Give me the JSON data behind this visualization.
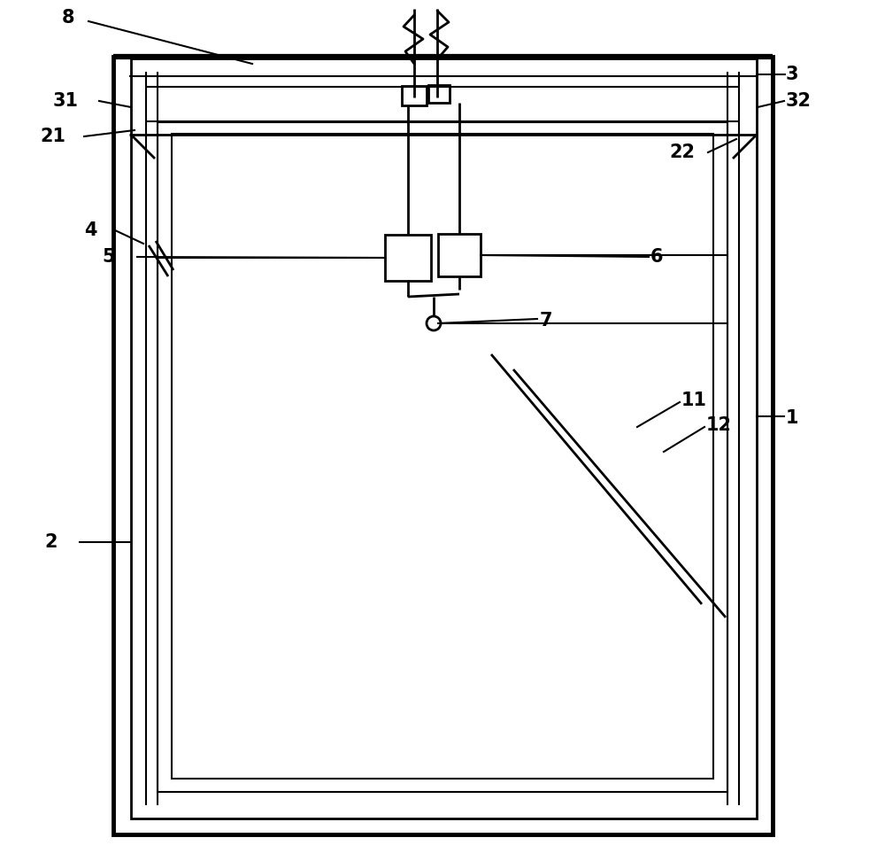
{
  "bg_color": "#ffffff",
  "line_color": "#000000",
  "lw_thick": 3.5,
  "lw_medium": 2.0,
  "lw_thin": 1.5,
  "fig_width": 10.0,
  "fig_height": 9.72
}
